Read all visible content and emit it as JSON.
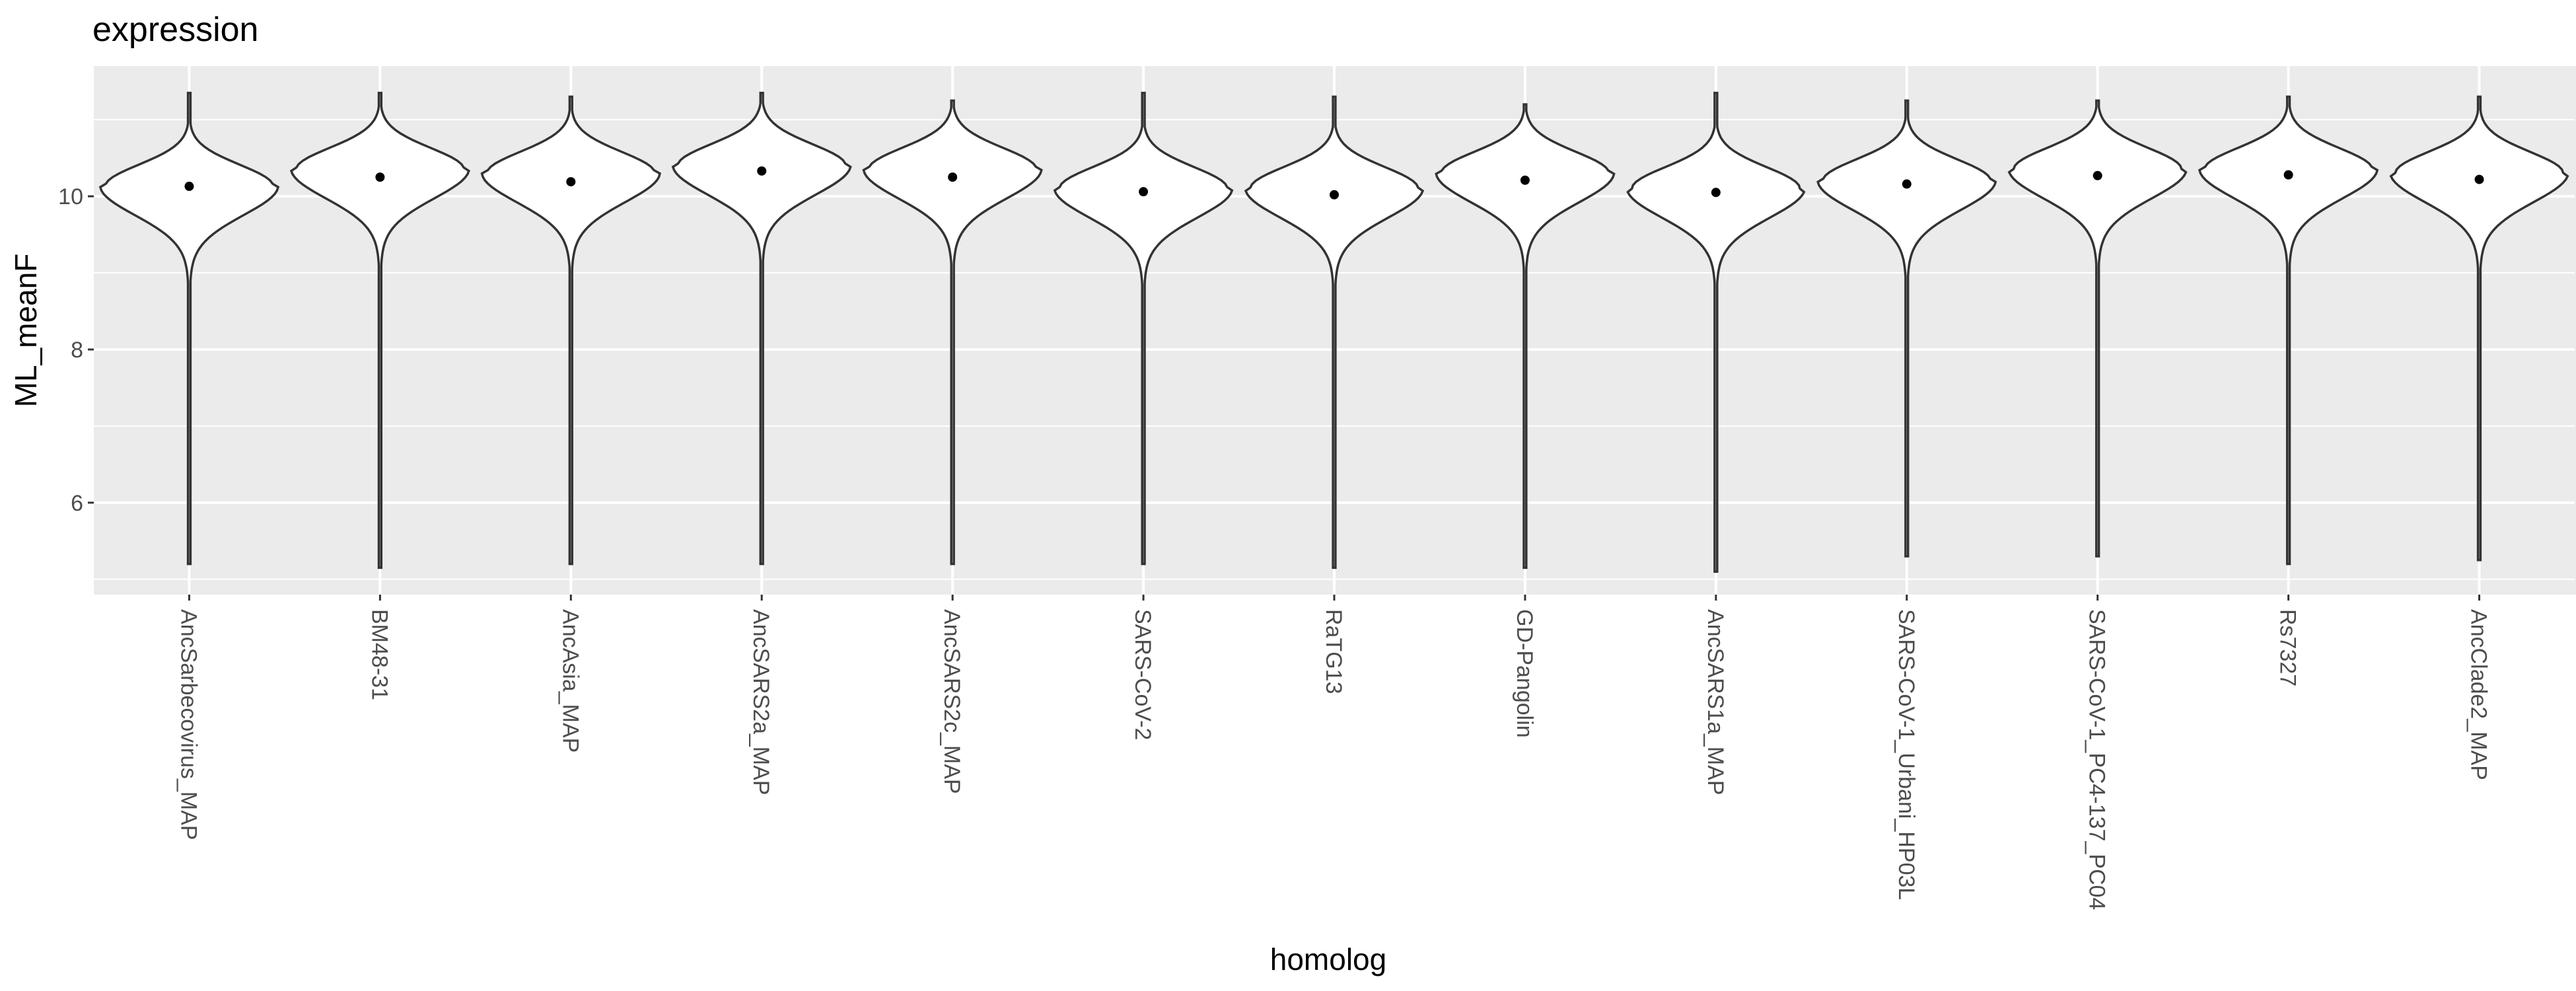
{
  "chart_data": {
    "type": "violin",
    "title": "expression",
    "xlabel": "homolog",
    "ylabel": "ML_meanF",
    "ylim": [
      4.8,
      11.7
    ],
    "yticks": [
      6,
      8,
      10
    ],
    "grid": true,
    "legend": "none",
    "categories": [
      "AncSarbecovirus_MAP",
      "BM48-31",
      "AncAsia_MAP",
      "AncSARS2a_MAP",
      "AncSARS2c_MAP",
      "SARS-CoV-2",
      "RaTG13",
      "GD-Pangolin",
      "AncSARS1a_MAP",
      "SARS-CoV-1_Urbani_HP03L",
      "SARS-CoV-1_PC4-137_PC04",
      "Rs7327",
      "AncClade2_MAP"
    ],
    "means": [
      10.13,
      10.25,
      10.19,
      10.33,
      10.25,
      10.06,
      10.02,
      10.21,
      10.05,
      10.16,
      10.27,
      10.28,
      10.22
    ],
    "violin_mode": [
      10.13,
      10.35,
      10.3,
      10.4,
      10.35,
      10.1,
      10.1,
      10.3,
      10.1,
      10.2,
      10.35,
      10.35,
      10.3
    ],
    "min": [
      5.2,
      5.15,
      5.2,
      5.2,
      5.2,
      5.2,
      5.15,
      5.15,
      5.1,
      5.3,
      5.3,
      5.2,
      5.25
    ],
    "max": [
      11.35,
      11.35,
      11.3,
      11.35,
      11.25,
      11.35,
      11.3,
      11.2,
      11.35,
      11.25,
      11.25,
      11.3,
      11.3
    ]
  },
  "colors": {
    "panel": "#ebebeb",
    "grid": "#ffffff",
    "violin_fill": "#ffffff",
    "violin_stroke": "#333333",
    "mean_point": "#000000",
    "tick": "#333333"
  }
}
